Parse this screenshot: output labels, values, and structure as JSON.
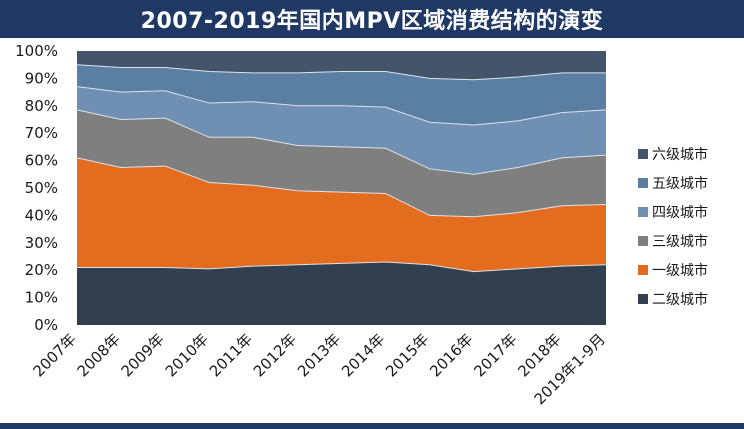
{
  "header": {
    "title": "2007-2019年国内MPV区域消费结构的演变"
  },
  "colors": {
    "title_bar": "#1f3864",
    "六级城市": "#44546a",
    "五级城市": "#5a7fa3",
    "四级城市": "#6f8fb3",
    "三级城市": "#7f7f7f",
    "一级城市": "#e46c1e",
    "二级城市": "#323f4f"
  },
  "chart_data": {
    "type": "area",
    "stacked": true,
    "normalized": true,
    "categories": [
      "2007年",
      "2008年",
      "2009年",
      "2010年",
      "2011年",
      "2012年",
      "2013年",
      "2014年",
      "2015年",
      "2016年",
      "2017年",
      "2018年",
      "2019年1-9月"
    ],
    "y_ticks": [
      "0%",
      "10%",
      "20%",
      "30%",
      "40%",
      "50%",
      "60%",
      "70%",
      "80%",
      "90%",
      "100%"
    ],
    "ylim": [
      0,
      100
    ],
    "legend_position": "right",
    "series": [
      {
        "name": "二级城市",
        "values": [
          21,
          21,
          21,
          20.5,
          21.5,
          22,
          22.5,
          23,
          22,
          19.5,
          20.5,
          21.5,
          22
        ]
      },
      {
        "name": "一级城市",
        "values": [
          40,
          36.5,
          37,
          31.5,
          29.5,
          27,
          26,
          25,
          18,
          20,
          20.5,
          22,
          22
        ]
      },
      {
        "name": "三级城市",
        "values": [
          17.5,
          17.5,
          17.5,
          16.5,
          17.5,
          16.5,
          16.5,
          16.5,
          17,
          15.5,
          16.5,
          17.5,
          18
        ]
      },
      {
        "name": "四级城市",
        "values": [
          8.5,
          10,
          10,
          12.5,
          13,
          14.5,
          15,
          15,
          17,
          18,
          17,
          16.5,
          16.5
        ]
      },
      {
        "name": "五级城市",
        "values": [
          8,
          9,
          8.5,
          11.5,
          10.5,
          12,
          12.5,
          13,
          16,
          16.5,
          16,
          14.5,
          13.5
        ]
      },
      {
        "name": "六级城市",
        "values": [
          5,
          6,
          6,
          7.5,
          8,
          8,
          7.5,
          7.5,
          10,
          10.5,
          9.5,
          8,
          8
        ]
      }
    ],
    "legend_order": [
      "六级城市",
      "五级城市",
      "四级城市",
      "三级城市",
      "一级城市",
      "二级城市"
    ]
  }
}
